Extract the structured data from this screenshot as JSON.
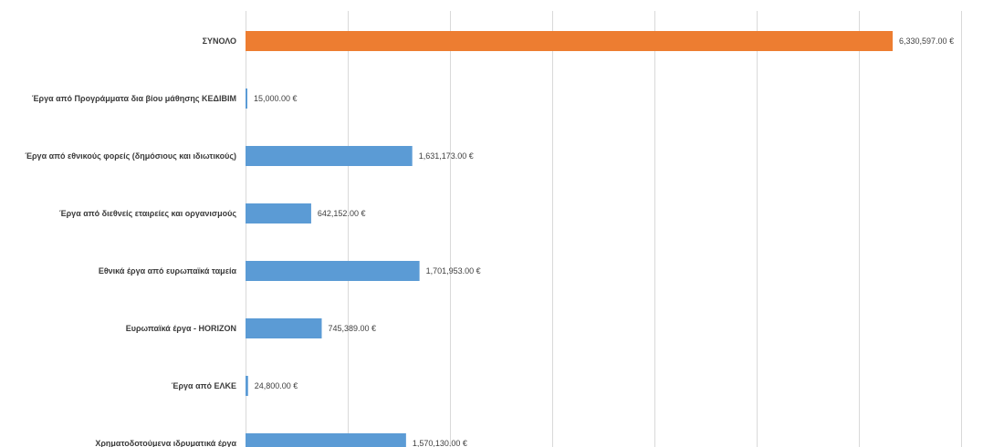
{
  "chart_data": {
    "type": "bar",
    "orientation": "horizontal",
    "title": "",
    "xlabel": "",
    "ylabel": "",
    "xlim": [
      0,
      7000000
    ],
    "grid": true,
    "legend": "none",
    "categories": [
      "ΣΥΝΟΛΟ",
      "Έργα από Προγράμματα δια βίου μάθησης ΚΕΔΙΒΙΜ",
      "Έργα από εθνικούς φορείς (δημόσιους και ιδιωτικούς)",
      "Έργα από διεθνείς εταιρείες και οργανισμούς",
      "Εθνικά έργα από ευρωπαϊκά ταμεία",
      "Ευρωπαϊκά έργα - HORIZON",
      "Έργα από ΕΛΚΕ",
      "Χρηματοδοτούμενα ιδρυματικά έργα"
    ],
    "values": [
      6330597,
      15000,
      1631173,
      642152,
      1701953,
      745389,
      24800,
      1570130
    ],
    "value_labels": [
      "6,330,597.00 €",
      "15,000.00 €",
      "1,631,173.00 €",
      "642,152.00 €",
      "1,701,953.00 €",
      "745,389.00 €",
      "24,800.00 €",
      "1,570,130.00 €"
    ],
    "colors": {
      "highlight": "#ED7D31",
      "default": "#5B9BD5"
    },
    "highlight_index": 0
  }
}
